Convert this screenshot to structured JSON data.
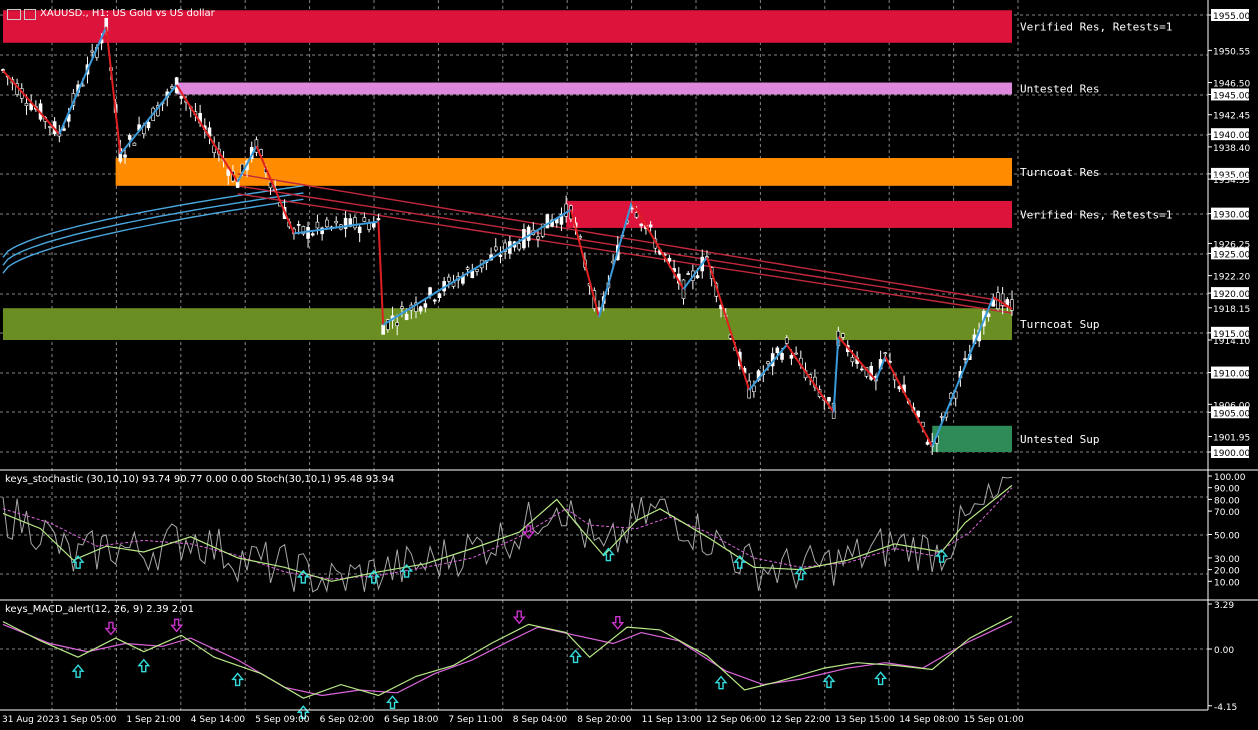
{
  "header": {
    "symbol_title": "XAUUSD., H1:  US Gold vs US dollar",
    "stoch_title": "keys_stochastic (30,10,10) 93.74 90.77 0.00 0.00 Stoch(30,10,1) 95.48 93.94",
    "macd_title": "keys_MACD_alert(12, 26, 9) 2.39 2.01"
  },
  "colors": {
    "background": "#000000",
    "grid": "#b0b0b0",
    "verified_res": "#dc143c",
    "untested_res": "#dd88dd",
    "turncoat_res": "#ff8c00",
    "turncoat_sup": "#6b8e23",
    "untested_sup": "#2e8b57",
    "zigzag_up": "#3a9ad9",
    "zigzag_down": "#e02020",
    "ma_red": "#c0283c",
    "ma_blue": "#4aa8e0",
    "stoch_main": "#b8e986",
    "stoch_signal": "#dd66dd",
    "stoch_raw": "#a8a8a8",
    "macd_main": "#b8e986",
    "macd_signal": "#dd66dd",
    "arrow_up": "#33dddd",
    "arrow_down": "#cc33cc"
  },
  "chart_data": [
    {
      "type": "candlestick",
      "title": "XAUUSD., H1:  US Gold vs US dollar",
      "ylim": [
        1898.0,
        1957.0
      ],
      "price_ticks": [
        "1955.00",
        "1950.55",
        "1946.50",
        "1945.00",
        "1942.45",
        "1940.00",
        "1938.40",
        "1935.00",
        "1934.35",
        "1930.00",
        "1926.25",
        "1925.00",
        "1922.20",
        "1920.00",
        "1918.15",
        "1915.00",
        "1914.10",
        "1910.00",
        "1906.00",
        "1905.00",
        "1901.95",
        "1900.00"
      ],
      "x_labels": [
        "31 Aug 2023",
        "1 Sep 05:00",
        "1 Sep 21:00",
        "4 Sep 14:00",
        "5 Sep 09:00",
        "6 Sep 02:00",
        "6 Sep 18:00",
        "7 Sep 11:00",
        "8 Sep 04:00",
        "8 Sep 20:00",
        "11 Sep 13:00",
        "12 Sep 06:00",
        "12 Sep 22:00",
        "13 Sep 15:00",
        "14 Sep 08:00",
        "15 Sep 01:00"
      ],
      "zones": [
        {
          "label": "Verified Res, Retests=1",
          "low": 1951.5,
          "high": 1955.6,
          "color_key": "verified_res",
          "start_index": 0
        },
        {
          "label": "Untested Res",
          "low": 1945.0,
          "high": 1946.5,
          "color_key": "untested_res",
          "start_index": 37
        },
        {
          "label": "Turncoat Res",
          "low": 1933.5,
          "high": 1937.0,
          "color_key": "turncoat_res",
          "start_index": 24
        },
        {
          "label": "Verified Res, Retests=1",
          "low": 1928.2,
          "high": 1931.6,
          "color_key": "verified_res",
          "start_index": 120
        },
        {
          "label": "Turncoat Sup",
          "low": 1914.1,
          "high": 1918.1,
          "color_key": "turncoat_sup",
          "start_index": 0
        },
        {
          "label": "Untested Sup",
          "low": 1900.0,
          "high": 1903.3,
          "color_key": "untested_sup",
          "start_index": 198
        }
      ],
      "zigzag": [
        [
          0,
          1948.0
        ],
        [
          12,
          1940.0
        ],
        [
          22,
          1953.5
        ],
        [
          25,
          1937.5
        ],
        [
          37,
          1946.2
        ],
        [
          50,
          1934.0
        ],
        [
          54,
          1938.5
        ],
        [
          62,
          1927.5
        ],
        [
          80,
          1929.0
        ],
        [
          81,
          1916.0
        ],
        [
          121,
          1930.5
        ],
        [
          127,
          1917.0
        ],
        [
          134,
          1931.5
        ],
        [
          145,
          1920.5
        ],
        [
          150,
          1924.5
        ],
        [
          159,
          1907.8
        ],
        [
          167,
          1913.5
        ],
        [
          177,
          1905.0
        ],
        [
          178,
          1914.5
        ],
        [
          186,
          1909.0
        ],
        [
          188,
          1912.0
        ],
        [
          198,
          1900.7
        ],
        [
          211,
          1919.5
        ],
        [
          215,
          1918.0
        ]
      ],
      "ma_red_start": [
        1935.0,
        1933.5,
        1932.5
      ],
      "ma_red_end": [
        1918.8,
        1918.2,
        1917.5
      ],
      "ma_blue_start": [
        1924.5,
        1923.5,
        1922.5
      ],
      "ma_blue_end": [
        1933.5,
        1932.6,
        1931.8
      ]
    },
    {
      "type": "line",
      "title": "keys_stochastic (30,10,10) 93.74 90.77 0.00 0.00 Stoch(30,10,1) 95.48 93.94",
      "ylim": [
        0,
        100
      ],
      "ticks": [
        "100.00",
        "90.00",
        "80.00",
        "70.00",
        "50.00",
        "30.00",
        "20.00",
        "10.00"
      ],
      "series": [
        {
          "name": "main",
          "points": [
            [
              0,
              68
            ],
            [
              8,
              55
            ],
            [
              15,
              28
            ],
            [
              22,
              40
            ],
            [
              30,
              35
            ],
            [
              40,
              48
            ],
            [
              50,
              30
            ],
            [
              60,
              22
            ],
            [
              70,
              10
            ],
            [
              80,
              18
            ],
            [
              90,
              25
            ],
            [
              100,
              38
            ],
            [
              110,
              52
            ],
            [
              118,
              80
            ],
            [
              122,
              60
            ],
            [
              128,
              32
            ],
            [
              135,
              62
            ],
            [
              140,
              72
            ],
            [
              150,
              48
            ],
            [
              160,
              22
            ],
            [
              170,
              20
            ],
            [
              180,
              28
            ],
            [
              190,
              42
            ],
            [
              200,
              35
            ],
            [
              205,
              60
            ],
            [
              215,
              92
            ]
          ]
        },
        {
          "name": "signal",
          "points": [
            [
              0,
              72
            ],
            [
              10,
              60
            ],
            [
              20,
              40
            ],
            [
              30,
              45
            ],
            [
              40,
              42
            ],
            [
              50,
              32
            ],
            [
              60,
              18
            ],
            [
              70,
              12
            ],
            [
              80,
              15
            ],
            [
              90,
              22
            ],
            [
              100,
              30
            ],
            [
              110,
              48
            ],
            [
              120,
              72
            ],
            [
              125,
              58
            ],
            [
              135,
              55
            ],
            [
              142,
              65
            ],
            [
              150,
              52
            ],
            [
              160,
              30
            ],
            [
              170,
              22
            ],
            [
              180,
              26
            ],
            [
              190,
              38
            ],
            [
              198,
              32
            ],
            [
              206,
              52
            ],
            [
              215,
              90
            ]
          ]
        }
      ],
      "buy_arrows_x": [
        16,
        64,
        79,
        86,
        129,
        157,
        170,
        200
      ],
      "sell_arrows_x": [
        112
      ]
    },
    {
      "type": "line",
      "title": "keys_MACD_alert(12, 26, 9) 2.39 2.01",
      "ylim": [
        -4.15,
        3.29
      ],
      "ticks": [
        "3.29",
        "0.00",
        "-4.15"
      ],
      "series": [
        {
          "name": "main",
          "points": [
            [
              0,
              2.0
            ],
            [
              8,
              0.6
            ],
            [
              16,
              -0.6
            ],
            [
              24,
              0.8
            ],
            [
              30,
              -0.2
            ],
            [
              38,
              1.0
            ],
            [
              45,
              -0.6
            ],
            [
              55,
              -1.8
            ],
            [
              64,
              -3.6
            ],
            [
              72,
              -2.6
            ],
            [
              80,
              -3.4
            ],
            [
              88,
              -2.0
            ],
            [
              96,
              -1.2
            ],
            [
              104,
              0.4
            ],
            [
              112,
              1.8
            ],
            [
              120,
              1.2
            ],
            [
              125,
              -0.6
            ],
            [
              133,
              1.6
            ],
            [
              140,
              1.4
            ],
            [
              150,
              -0.5
            ],
            [
              158,
              -3.0
            ],
            [
              165,
              -2.4
            ],
            [
              175,
              -1.4
            ],
            [
              182,
              -1.0
            ],
            [
              190,
              -1.2
            ],
            [
              198,
              -1.5
            ],
            [
              206,
              0.8
            ],
            [
              215,
              2.4
            ]
          ]
        },
        {
          "name": "signal",
          "points": [
            [
              0,
              1.8
            ],
            [
              10,
              0.4
            ],
            [
              18,
              -0.2
            ],
            [
              26,
              0.4
            ],
            [
              34,
              0.2
            ],
            [
              40,
              0.8
            ],
            [
              50,
              -0.8
            ],
            [
              60,
              -2.8
            ],
            [
              68,
              -3.4
            ],
            [
              76,
              -3.0
            ],
            [
              84,
              -3.2
            ],
            [
              92,
              -1.8
            ],
            [
              100,
              -0.8
            ],
            [
              108,
              0.6
            ],
            [
              114,
              1.6
            ],
            [
              122,
              1.0
            ],
            [
              130,
              0.4
            ],
            [
              136,
              1.2
            ],
            [
              144,
              0.6
            ],
            [
              154,
              -1.6
            ],
            [
              162,
              -2.6
            ],
            [
              170,
              -2.2
            ],
            [
              180,
              -1.4
            ],
            [
              188,
              -1.0
            ],
            [
              196,
              -1.4
            ],
            [
              205,
              0.4
            ],
            [
              215,
              2.0
            ]
          ]
        }
      ],
      "buy_arrows_x": [
        16,
        30,
        50,
        64,
        83,
        122,
        153,
        176,
        187
      ],
      "sell_arrows_x": [
        23,
        37,
        110,
        131
      ]
    }
  ]
}
